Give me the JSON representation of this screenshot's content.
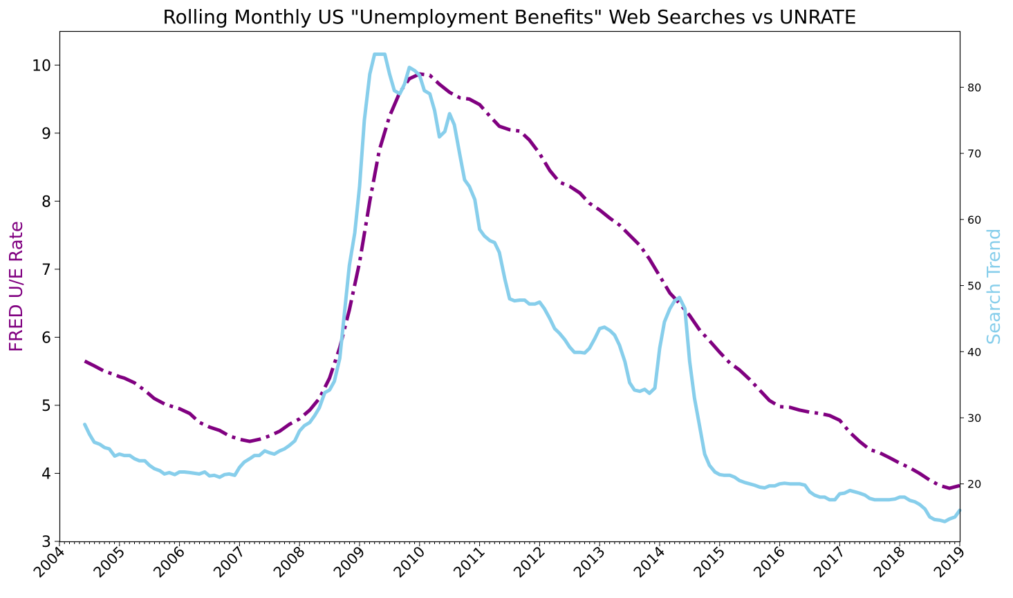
{
  "chart_data": {
    "type": "line",
    "title": "Rolling Monthly US \"Unemployment Benefits\" Web Searches vs UNRATE",
    "xlabel": "",
    "ylabel_left": "FRED U/E Rate",
    "ylabel_right": "Search Trend",
    "xlim": [
      2004.0,
      2019.0
    ],
    "ylim_left": [
      3,
      10.5
    ],
    "ylim_right": [
      11.3,
      88.5
    ],
    "x_ticks": [
      "2004",
      "2005",
      "2006",
      "2007",
      "2008",
      "2009",
      "2010",
      "2011",
      "2012",
      "2013",
      "2014",
      "2015",
      "2016",
      "2017",
      "2018",
      "2019"
    ],
    "y_ticks_left": [
      "3",
      "4",
      "5",
      "6",
      "7",
      "8",
      "9",
      "10"
    ],
    "y_ticks_right": [
      "20",
      "30",
      "40",
      "50",
      "60",
      "70",
      "80"
    ],
    "grid": false,
    "colors": {
      "unrate": "#800080",
      "search": "#87ceeb"
    },
    "series": [
      {
        "name": "FRED U/E Rate",
        "axis": "left",
        "style": "dashdot",
        "points": [
          [
            2004.42,
            5.65
          ],
          [
            2004.58,
            5.58
          ],
          [
            2004.75,
            5.5
          ],
          [
            2004.92,
            5.45
          ],
          [
            2005.0,
            5.42
          ],
          [
            2005.08,
            5.4
          ],
          [
            2005.25,
            5.33
          ],
          [
            2005.42,
            5.22
          ],
          [
            2005.58,
            5.1
          ],
          [
            2005.75,
            5.02
          ],
          [
            2005.92,
            4.97
          ],
          [
            2006.0,
            4.95
          ],
          [
            2006.17,
            4.88
          ],
          [
            2006.33,
            4.75
          ],
          [
            2006.5,
            4.68
          ],
          [
            2006.67,
            4.63
          ],
          [
            2006.83,
            4.55
          ],
          [
            2007.0,
            4.5
          ],
          [
            2007.17,
            4.47
          ],
          [
            2007.33,
            4.5
          ],
          [
            2007.5,
            4.55
          ],
          [
            2007.67,
            4.62
          ],
          [
            2007.83,
            4.72
          ],
          [
            2008.0,
            4.8
          ],
          [
            2008.17,
            4.93
          ],
          [
            2008.33,
            5.1
          ],
          [
            2008.5,
            5.4
          ],
          [
            2008.67,
            5.85
          ],
          [
            2008.83,
            6.4
          ],
          [
            2009.0,
            7.1
          ],
          [
            2009.17,
            8.0
          ],
          [
            2009.33,
            8.75
          ],
          [
            2009.5,
            9.25
          ],
          [
            2009.67,
            9.6
          ],
          [
            2009.83,
            9.8
          ],
          [
            2010.0,
            9.87
          ],
          [
            2010.17,
            9.85
          ],
          [
            2010.33,
            9.72
          ],
          [
            2010.5,
            9.6
          ],
          [
            2010.67,
            9.52
          ],
          [
            2010.83,
            9.5
          ],
          [
            2011.0,
            9.42
          ],
          [
            2011.17,
            9.25
          ],
          [
            2011.33,
            9.1
          ],
          [
            2011.5,
            9.05
          ],
          [
            2011.67,
            9.03
          ],
          [
            2011.83,
            8.9
          ],
          [
            2012.0,
            8.7
          ],
          [
            2012.17,
            8.45
          ],
          [
            2012.33,
            8.28
          ],
          [
            2012.5,
            8.22
          ],
          [
            2012.67,
            8.12
          ],
          [
            2012.83,
            7.97
          ],
          [
            2013.0,
            7.87
          ],
          [
            2013.17,
            7.75
          ],
          [
            2013.33,
            7.65
          ],
          [
            2013.5,
            7.5
          ],
          [
            2013.67,
            7.35
          ],
          [
            2013.83,
            7.15
          ],
          [
            2014.0,
            6.9
          ],
          [
            2014.17,
            6.65
          ],
          [
            2014.33,
            6.5
          ],
          [
            2014.5,
            6.32
          ],
          [
            2014.67,
            6.1
          ],
          [
            2014.83,
            5.95
          ],
          [
            2015.0,
            5.78
          ],
          [
            2015.17,
            5.62
          ],
          [
            2015.33,
            5.52
          ],
          [
            2015.5,
            5.38
          ],
          [
            2015.67,
            5.22
          ],
          [
            2015.83,
            5.07
          ],
          [
            2016.0,
            4.98
          ],
          [
            2016.17,
            4.97
          ],
          [
            2016.33,
            4.93
          ],
          [
            2016.5,
            4.9
          ],
          [
            2016.67,
            4.88
          ],
          [
            2016.83,
            4.85
          ],
          [
            2017.0,
            4.78
          ],
          [
            2017.17,
            4.6
          ],
          [
            2017.33,
            4.47
          ],
          [
            2017.5,
            4.35
          ],
          [
            2017.67,
            4.3
          ],
          [
            2017.83,
            4.23
          ],
          [
            2018.0,
            4.15
          ],
          [
            2018.17,
            4.08
          ],
          [
            2018.33,
            4.0
          ],
          [
            2018.5,
            3.9
          ],
          [
            2018.67,
            3.82
          ],
          [
            2018.83,
            3.78
          ],
          [
            2019.0,
            3.82
          ]
        ]
      },
      {
        "name": "Search Trend",
        "axis": "right",
        "style": "solid",
        "points": [
          [
            2004.42,
            29
          ],
          [
            2004.5,
            27.5
          ],
          [
            2004.58,
            26.3
          ],
          [
            2004.67,
            26
          ],
          [
            2004.75,
            25.5
          ],
          [
            2004.83,
            25.3
          ],
          [
            2004.92,
            24.2
          ],
          [
            2005.0,
            24.5
          ],
          [
            2005.08,
            24.3
          ],
          [
            2005.17,
            24.3
          ],
          [
            2005.25,
            23.8
          ],
          [
            2005.33,
            23.5
          ],
          [
            2005.42,
            23.5
          ],
          [
            2005.5,
            22.8
          ],
          [
            2005.58,
            22.3
          ],
          [
            2005.67,
            22
          ],
          [
            2005.75,
            21.5
          ],
          [
            2005.83,
            21.7
          ],
          [
            2005.92,
            21.4
          ],
          [
            2006.0,
            21.8
          ],
          [
            2006.08,
            21.8
          ],
          [
            2006.17,
            21.7
          ],
          [
            2006.25,
            21.6
          ],
          [
            2006.33,
            21.5
          ],
          [
            2006.42,
            21.8
          ],
          [
            2006.5,
            21.2
          ],
          [
            2006.58,
            21.3
          ],
          [
            2006.67,
            21
          ],
          [
            2006.75,
            21.4
          ],
          [
            2006.83,
            21.5
          ],
          [
            2006.92,
            21.3
          ],
          [
            2007.0,
            22.5
          ],
          [
            2007.08,
            23.3
          ],
          [
            2007.17,
            23.8
          ],
          [
            2007.25,
            24.3
          ],
          [
            2007.33,
            24.3
          ],
          [
            2007.42,
            25
          ],
          [
            2007.5,
            24.7
          ],
          [
            2007.58,
            24.5
          ],
          [
            2007.67,
            25
          ],
          [
            2007.75,
            25.3
          ],
          [
            2007.83,
            25.8
          ],
          [
            2007.92,
            26.5
          ],
          [
            2008.0,
            28
          ],
          [
            2008.08,
            28.8
          ],
          [
            2008.17,
            29.3
          ],
          [
            2008.25,
            30.3
          ],
          [
            2008.33,
            31.5
          ],
          [
            2008.42,
            33.8
          ],
          [
            2008.5,
            34.2
          ],
          [
            2008.58,
            35.5
          ],
          [
            2008.67,
            39
          ],
          [
            2008.75,
            46
          ],
          [
            2008.83,
            53
          ],
          [
            2008.92,
            58
          ],
          [
            2009.0,
            65
          ],
          [
            2009.08,
            75
          ],
          [
            2009.17,
            82
          ],
          [
            2009.25,
            85
          ],
          [
            2009.33,
            85
          ],
          [
            2009.42,
            85
          ],
          [
            2009.5,
            82
          ],
          [
            2009.58,
            79.5
          ],
          [
            2009.67,
            79
          ],
          [
            2009.75,
            80.5
          ],
          [
            2009.83,
            83
          ],
          [
            2009.92,
            82.5
          ],
          [
            2010.0,
            81.8
          ],
          [
            2010.08,
            79.5
          ],
          [
            2010.17,
            79
          ],
          [
            2010.25,
            76.5
          ],
          [
            2010.33,
            72.5
          ],
          [
            2010.42,
            73.3
          ],
          [
            2010.5,
            76
          ],
          [
            2010.58,
            74.3
          ],
          [
            2010.67,
            69.8
          ],
          [
            2010.75,
            66
          ],
          [
            2010.83,
            65
          ],
          [
            2010.92,
            63
          ],
          [
            2011.0,
            58.5
          ],
          [
            2011.08,
            57.5
          ],
          [
            2011.17,
            56.8
          ],
          [
            2011.25,
            56.5
          ],
          [
            2011.33,
            55
          ],
          [
            2011.42,
            51
          ],
          [
            2011.5,
            48
          ],
          [
            2011.58,
            47.7
          ],
          [
            2011.67,
            47.8
          ],
          [
            2011.75,
            47.8
          ],
          [
            2011.83,
            47.2
          ],
          [
            2011.92,
            47.2
          ],
          [
            2012.0,
            47.5
          ],
          [
            2012.08,
            46.5
          ],
          [
            2012.17,
            45
          ],
          [
            2012.25,
            43.5
          ],
          [
            2012.33,
            42.8
          ],
          [
            2012.42,
            41.8
          ],
          [
            2012.5,
            40.7
          ],
          [
            2012.58,
            39.9
          ],
          [
            2012.67,
            39.9
          ],
          [
            2012.75,
            39.8
          ],
          [
            2012.83,
            40.5
          ],
          [
            2012.92,
            42
          ],
          [
            2013.0,
            43.5
          ],
          [
            2013.08,
            43.7
          ],
          [
            2013.17,
            43.2
          ],
          [
            2013.25,
            42.5
          ],
          [
            2013.33,
            41
          ],
          [
            2013.42,
            38.5
          ],
          [
            2013.5,
            35.3
          ],
          [
            2013.58,
            34.2
          ],
          [
            2013.67,
            34
          ],
          [
            2013.75,
            34.3
          ],
          [
            2013.83,
            33.7
          ],
          [
            2013.92,
            34.5
          ],
          [
            2014.0,
            40.5
          ],
          [
            2014.08,
            44.5
          ],
          [
            2014.17,
            46.5
          ],
          [
            2014.25,
            47.7
          ],
          [
            2014.33,
            48.2
          ],
          [
            2014.42,
            46.5
          ],
          [
            2014.5,
            38.5
          ],
          [
            2014.58,
            33
          ],
          [
            2014.67,
            28.5
          ],
          [
            2014.75,
            24.5
          ],
          [
            2014.83,
            22.8
          ],
          [
            2014.92,
            21.8
          ],
          [
            2015.0,
            21.4
          ],
          [
            2015.08,
            21.3
          ],
          [
            2015.17,
            21.3
          ],
          [
            2015.25,
            21
          ],
          [
            2015.33,
            20.5
          ],
          [
            2015.42,
            20.2
          ],
          [
            2015.5,
            20
          ],
          [
            2015.58,
            19.8
          ],
          [
            2015.67,
            19.5
          ],
          [
            2015.75,
            19.4
          ],
          [
            2015.83,
            19.7
          ],
          [
            2015.92,
            19.7
          ],
          [
            2016.0,
            20
          ],
          [
            2016.08,
            20.1
          ],
          [
            2016.17,
            20
          ],
          [
            2016.25,
            20
          ],
          [
            2016.33,
            20
          ],
          [
            2016.42,
            19.8
          ],
          [
            2016.5,
            18.8
          ],
          [
            2016.58,
            18.3
          ],
          [
            2016.67,
            18
          ],
          [
            2016.75,
            18
          ],
          [
            2016.83,
            17.6
          ],
          [
            2016.92,
            17.6
          ],
          [
            2017.0,
            18.5
          ],
          [
            2017.08,
            18.6
          ],
          [
            2017.17,
            19
          ],
          [
            2017.25,
            18.8
          ],
          [
            2017.33,
            18.6
          ],
          [
            2017.42,
            18.3
          ],
          [
            2017.5,
            17.8
          ],
          [
            2017.58,
            17.6
          ],
          [
            2017.67,
            17.6
          ],
          [
            2017.75,
            17.6
          ],
          [
            2017.83,
            17.6
          ],
          [
            2017.92,
            17.7
          ],
          [
            2018.0,
            18
          ],
          [
            2018.08,
            18
          ],
          [
            2018.17,
            17.5
          ],
          [
            2018.25,
            17.3
          ],
          [
            2018.33,
            16.9
          ],
          [
            2018.42,
            16.2
          ],
          [
            2018.5,
            15
          ],
          [
            2018.58,
            14.6
          ],
          [
            2018.67,
            14.5
          ],
          [
            2018.75,
            14.3
          ],
          [
            2018.83,
            14.7
          ],
          [
            2018.92,
            15
          ],
          [
            2019.0,
            16
          ]
        ]
      }
    ]
  }
}
